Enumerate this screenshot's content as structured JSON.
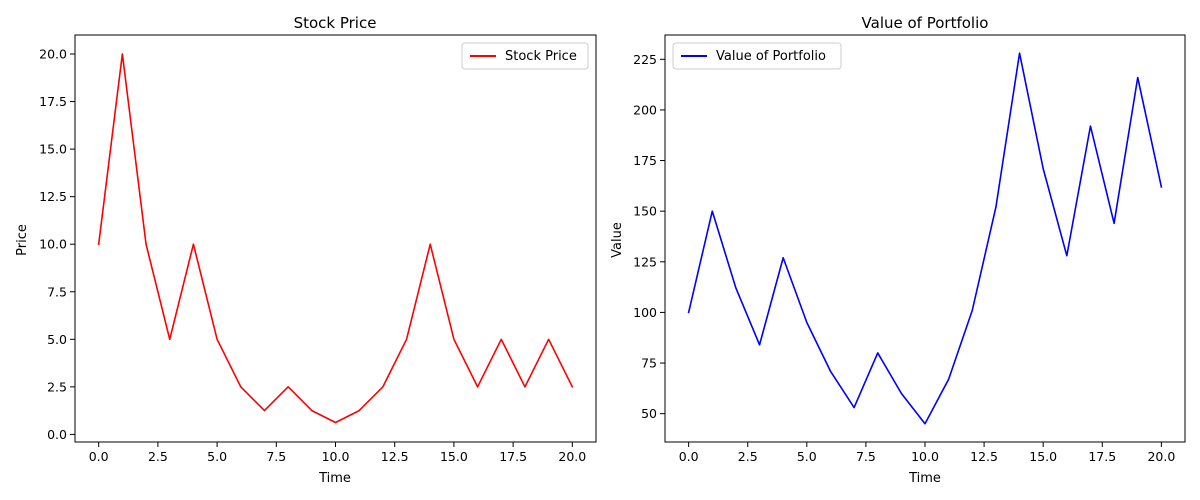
{
  "chart_data": [
    {
      "type": "line",
      "title": "Stock Price",
      "xlabel": "Time",
      "ylabel": "Price",
      "xlim": [
        -1,
        21
      ],
      "ylim": [
        -0.4,
        21.0
      ],
      "xticks": [
        0.0,
        2.5,
        5.0,
        7.5,
        10.0,
        12.5,
        15.0,
        17.5,
        20.0
      ],
      "xtick_labels": [
        "0.0",
        "2.5",
        "5.0",
        "7.5",
        "10.0",
        "12.5",
        "15.0",
        "17.5",
        "20.0"
      ],
      "yticks": [
        0.0,
        2.5,
        5.0,
        7.5,
        10.0,
        12.5,
        15.0,
        17.5,
        20.0
      ],
      "ytick_labels": [
        "0.0",
        "2.5",
        "5.0",
        "7.5",
        "10.0",
        "12.5",
        "15.0",
        "17.5",
        "20.0"
      ],
      "grid": false,
      "legend_position": "top-right",
      "series": [
        {
          "name": "Stock Price",
          "color": "#ff0000",
          "x": [
            0,
            1,
            2,
            3,
            4,
            5,
            6,
            7,
            8,
            9,
            10,
            11,
            12,
            13,
            14,
            15,
            16,
            17,
            18,
            19,
            20
          ],
          "y": [
            10,
            20,
            10,
            5,
            10,
            5,
            2.5,
            1.25,
            2.5,
            1.25,
            0.625,
            1.25,
            2.5,
            5,
            10,
            5,
            2.5,
            5,
            2.5,
            5,
            2.5
          ]
        }
      ]
    },
    {
      "type": "line",
      "title": "Value of Portfolio",
      "xlabel": "Time",
      "ylabel": "Value",
      "xlim": [
        -1,
        21
      ],
      "ylim": [
        36,
        237
      ],
      "xticks": [
        0.0,
        2.5,
        5.0,
        7.5,
        10.0,
        12.5,
        15.0,
        17.5,
        20.0
      ],
      "xtick_labels": [
        "0.0",
        "2.5",
        "5.0",
        "7.5",
        "10.0",
        "12.5",
        "15.0",
        "17.5",
        "20.0"
      ],
      "yticks": [
        50,
        75,
        100,
        125,
        150,
        175,
        200,
        225
      ],
      "ytick_labels": [
        "50",
        "75",
        "100",
        "125",
        "150",
        "175",
        "200",
        "225"
      ],
      "grid": false,
      "legend_position": "top-left",
      "series": [
        {
          "name": "Value of Portfolio",
          "color": "#0000ff",
          "x": [
            0,
            1,
            2,
            3,
            4,
            5,
            6,
            7,
            8,
            9,
            10,
            11,
            12,
            13,
            14,
            15,
            16,
            17,
            18,
            19,
            20
          ],
          "y": [
            100,
            150,
            112,
            84,
            127,
            95,
            71,
            53,
            80,
            60,
            45,
            67,
            101,
            152,
            228,
            171,
            128,
            192,
            144,
            216,
            162
          ]
        }
      ]
    }
  ]
}
